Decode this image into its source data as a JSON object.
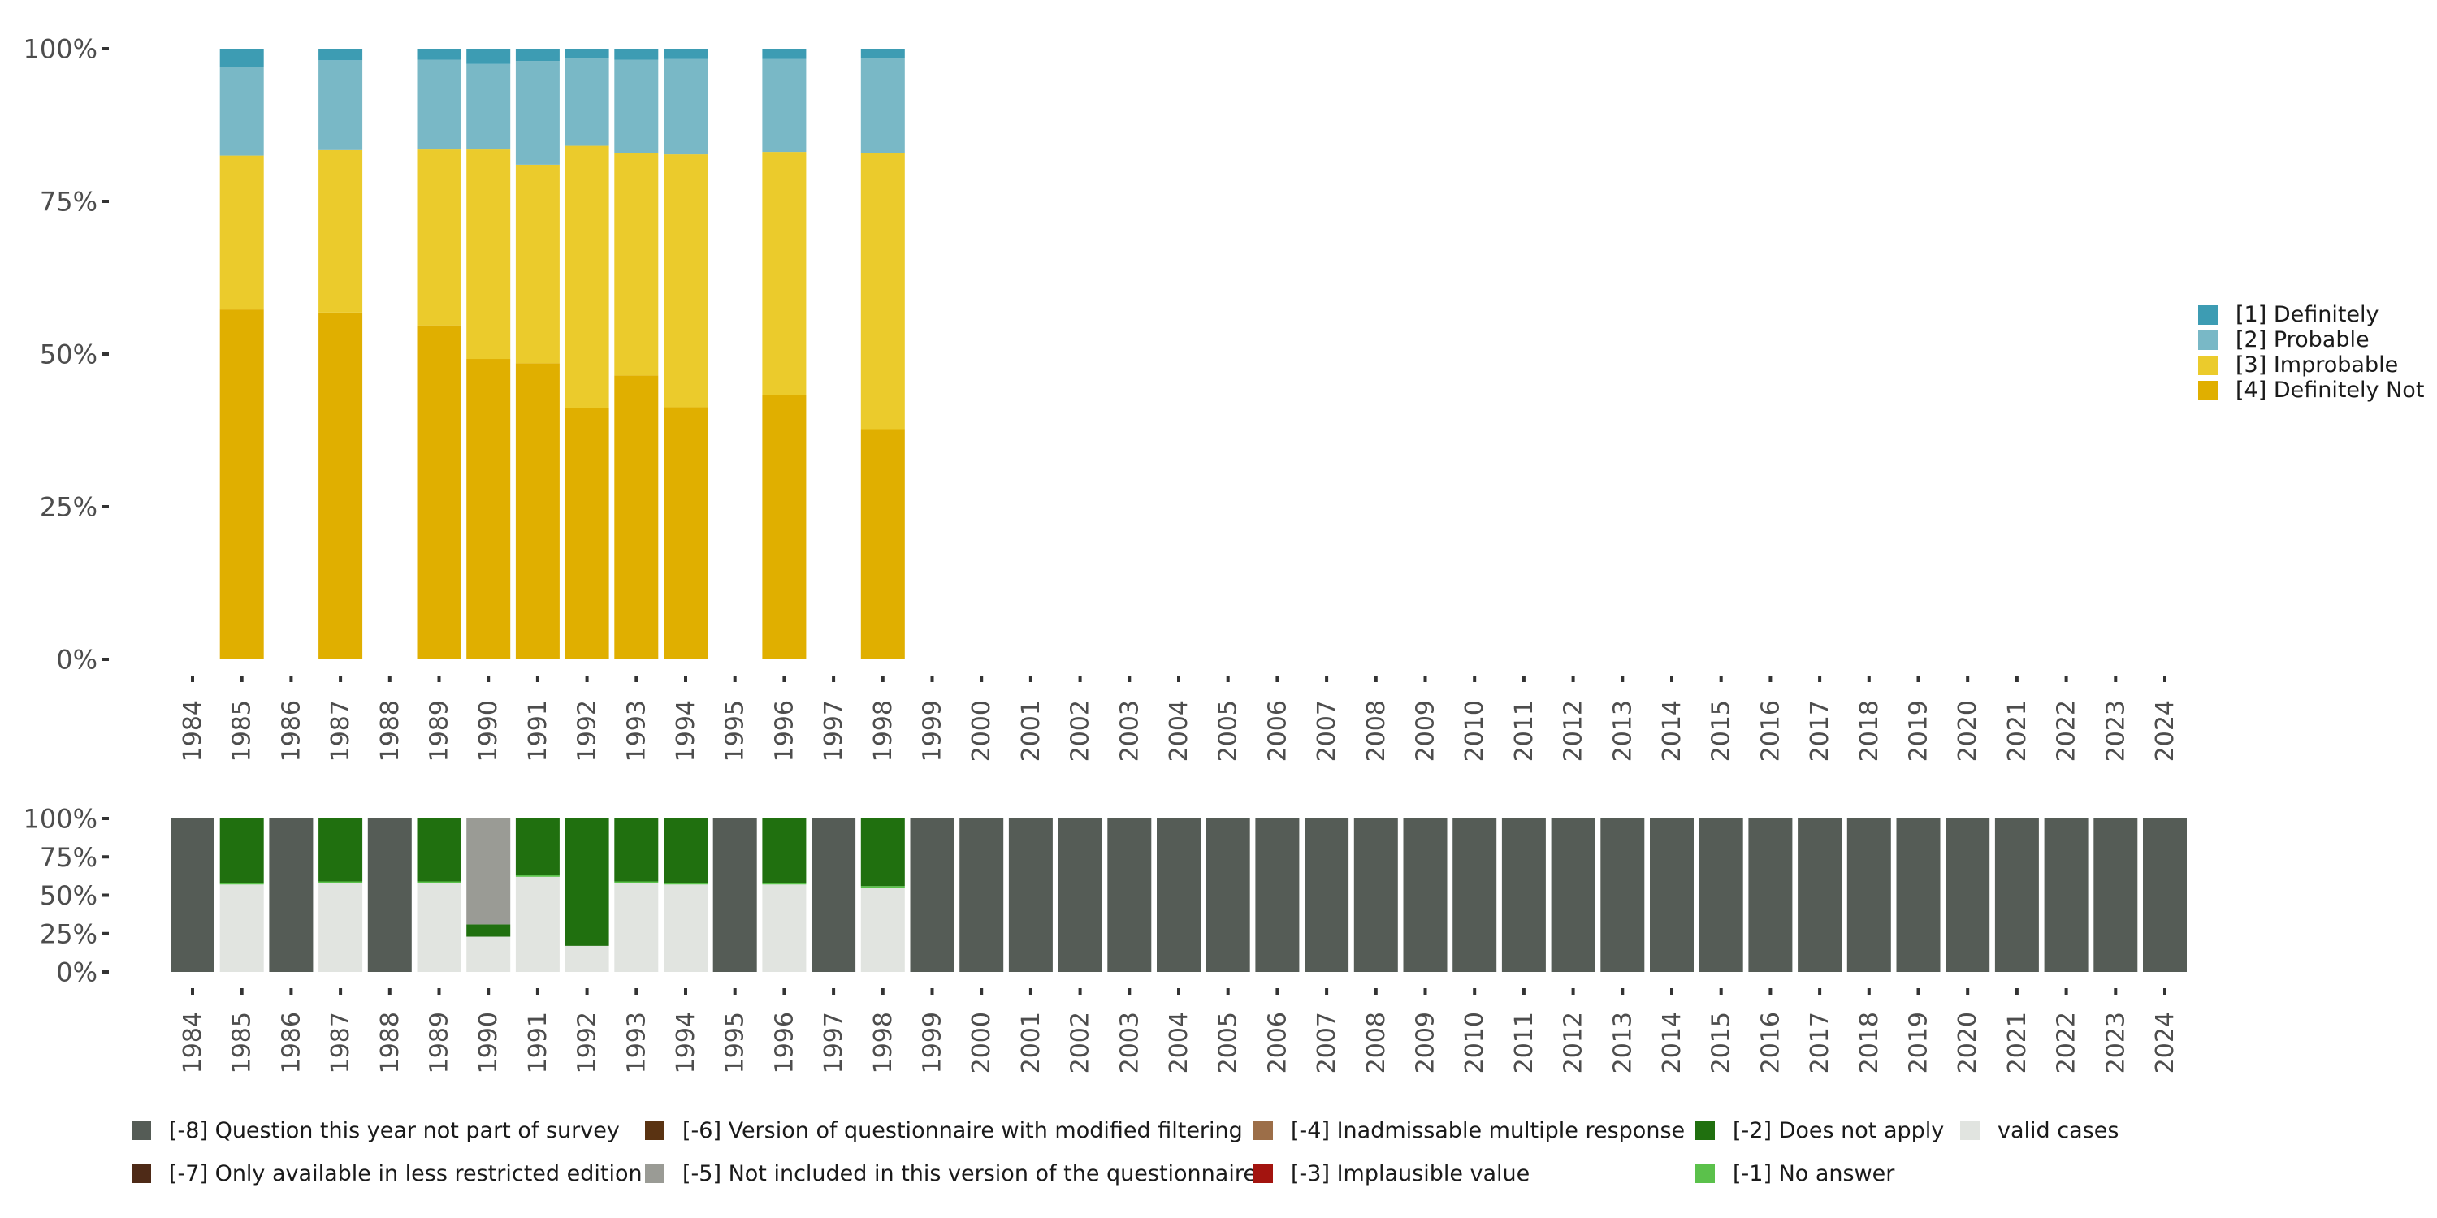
{
  "chart_data": [
    {
      "type": "bar",
      "stacked": true,
      "categories": [
        "1984",
        "1985",
        "1986",
        "1987",
        "1988",
        "1989",
        "1990",
        "1991",
        "1992",
        "1993",
        "1994",
        "1995",
        "1996",
        "1997",
        "1998",
        "1999",
        "2000",
        "2001",
        "2002",
        "2003",
        "2004",
        "2005",
        "2006",
        "2007",
        "2008",
        "2009",
        "2010",
        "2011",
        "2012",
        "2013",
        "2014",
        "2015",
        "2016",
        "2017",
        "2018",
        "2019",
        "2020",
        "2021",
        "2022",
        "2023",
        "2024"
      ],
      "ylim": [
        0,
        100
      ],
      "yticks": [
        "0%",
        "25%",
        "50%",
        "75%",
        "100%"
      ],
      "legend_position": "right",
      "series": [
        {
          "name": "[4] Definitely Not",
          "color": "#E0AF00",
          "values": [
            null,
            57.3,
            null,
            56.8,
            null,
            54.7,
            49.2,
            48.5,
            41.2,
            46.5,
            41.3,
            null,
            43.3,
            null,
            37.7,
            null,
            null,
            null,
            null,
            null,
            null,
            null,
            null,
            null,
            null,
            null,
            null,
            null,
            null,
            null,
            null,
            null,
            null,
            null,
            null,
            null,
            null,
            null,
            null,
            null,
            null
          ]
        },
        {
          "name": "[3] Improbable",
          "color": "#EBCB2C",
          "values": [
            null,
            25.2,
            null,
            26.6,
            null,
            28.8,
            34.3,
            32.5,
            42.9,
            36.4,
            41.4,
            null,
            39.8,
            null,
            45.2,
            null,
            null,
            null,
            null,
            null,
            null,
            null,
            null,
            null,
            null,
            null,
            null,
            null,
            null,
            null,
            null,
            null,
            null,
            null,
            null,
            null,
            null,
            null,
            null,
            null,
            null
          ]
        },
        {
          "name": "[2] Probable",
          "color": "#79B8C6",
          "values": [
            null,
            14.5,
            null,
            14.7,
            null,
            14.7,
            14.0,
            17.0,
            14.3,
            15.3,
            15.6,
            null,
            15.2,
            null,
            15.5,
            null,
            null,
            null,
            null,
            null,
            null,
            null,
            null,
            null,
            null,
            null,
            null,
            null,
            null,
            null,
            null,
            null,
            null,
            null,
            null,
            null,
            null,
            null,
            null,
            null,
            null
          ]
        },
        {
          "name": "[1] Definitely",
          "color": "#3D9CB3",
          "values": [
            null,
            3.0,
            null,
            1.9,
            null,
            1.8,
            2.5,
            2.0,
            1.6,
            1.8,
            1.7,
            null,
            1.7,
            null,
            1.6,
            null,
            null,
            null,
            null,
            null,
            null,
            null,
            null,
            null,
            null,
            null,
            null,
            null,
            null,
            null,
            null,
            null,
            null,
            null,
            null,
            null,
            null,
            null,
            null,
            null,
            null
          ]
        }
      ]
    },
    {
      "type": "bar",
      "stacked": true,
      "categories": [
        "1984",
        "1985",
        "1986",
        "1987",
        "1988",
        "1989",
        "1990",
        "1991",
        "1992",
        "1993",
        "1994",
        "1995",
        "1996",
        "1997",
        "1998",
        "1999",
        "2000",
        "2001",
        "2002",
        "2003",
        "2004",
        "2005",
        "2006",
        "2007",
        "2008",
        "2009",
        "2010",
        "2011",
        "2012",
        "2013",
        "2014",
        "2015",
        "2016",
        "2017",
        "2018",
        "2019",
        "2020",
        "2021",
        "2022",
        "2023",
        "2024"
      ],
      "ylim": [
        0,
        100
      ],
      "yticks": [
        "0%",
        "25%",
        "50%",
        "75%",
        "100%"
      ],
      "legend_position": "bottom",
      "series": [
        {
          "name": "valid cases",
          "color": "#E1E4E0",
          "values": [
            0,
            57,
            0,
            58,
            0,
            58,
            23,
            62,
            17,
            58,
            57,
            0,
            57,
            0,
            55,
            0,
            0,
            0,
            0,
            0,
            0,
            0,
            0,
            0,
            0,
            0,
            0,
            0,
            0,
            0,
            0,
            0,
            0,
            0,
            0,
            0,
            0,
            0,
            0,
            0,
            0
          ]
        },
        {
          "name": "[-1] No answer",
          "color": "#5BC14B",
          "values": [
            0,
            1,
            0,
            1,
            0,
            1,
            0,
            1,
            0,
            1,
            1,
            0,
            1,
            0,
            1,
            0,
            0,
            0,
            0,
            0,
            0,
            0,
            0,
            0,
            0,
            0,
            0,
            0,
            0,
            0,
            0,
            0,
            0,
            0,
            0,
            0,
            0,
            0,
            0,
            0,
            0
          ]
        },
        {
          "name": "[-2] Does not apply",
          "color": "#20700F",
          "values": [
            0,
            42,
            0,
            41,
            0,
            41,
            8,
            37,
            83,
            41,
            42,
            0,
            42,
            0,
            44,
            0,
            0,
            0,
            0,
            0,
            0,
            0,
            0,
            0,
            0,
            0,
            0,
            0,
            0,
            0,
            0,
            0,
            0,
            0,
            0,
            0,
            0,
            0,
            0,
            0,
            0
          ]
        },
        {
          "name": "[-3] Implausible value",
          "color": "#A3140F",
          "values": [
            0,
            0,
            0,
            0,
            0,
            0,
            0,
            0,
            0,
            0,
            0,
            0,
            0,
            0,
            0,
            0,
            0,
            0,
            0,
            0,
            0,
            0,
            0,
            0,
            0,
            0,
            0,
            0,
            0,
            0,
            0,
            0,
            0,
            0,
            0,
            0,
            0,
            0,
            0,
            0,
            0
          ]
        },
        {
          "name": "[-4] Inadmissable multiple response",
          "color": "#9C6E48",
          "values": [
            0,
            0,
            0,
            0,
            0,
            0,
            0,
            0,
            0,
            0,
            0,
            0,
            0,
            0,
            0,
            0,
            0,
            0,
            0,
            0,
            0,
            0,
            0,
            0,
            0,
            0,
            0,
            0,
            0,
            0,
            0,
            0,
            0,
            0,
            0,
            0,
            0,
            0,
            0,
            0,
            0
          ]
        },
        {
          "name": "[-5] Not included in this version of the questionnaire",
          "color": "#9A9B95",
          "values": [
            0,
            0,
            0,
            0,
            0,
            0,
            69,
            0,
            0,
            0,
            0,
            0,
            0,
            0,
            0,
            0,
            0,
            0,
            0,
            0,
            0,
            0,
            0,
            0,
            0,
            0,
            0,
            0,
            0,
            0,
            0,
            0,
            0,
            0,
            0,
            0,
            0,
            0,
            0,
            0,
            0
          ]
        },
        {
          "name": "[-6] Version of questionnaire with modified filtering",
          "color": "#5A3312",
          "values": [
            0,
            0,
            0,
            0,
            0,
            0,
            0,
            0,
            0,
            0,
            0,
            0,
            0,
            0,
            0,
            0,
            0,
            0,
            0,
            0,
            0,
            0,
            0,
            0,
            0,
            0,
            0,
            0,
            0,
            0,
            0,
            0,
            0,
            0,
            0,
            0,
            0,
            0,
            0,
            0,
            0
          ]
        },
        {
          "name": "[-7] Only available in less restricted edition",
          "color": "#4E2A17",
          "values": [
            0,
            0,
            0,
            0,
            0,
            0,
            0,
            0,
            0,
            0,
            0,
            0,
            0,
            0,
            0,
            0,
            0,
            0,
            0,
            0,
            0,
            0,
            0,
            0,
            0,
            0,
            0,
            0,
            0,
            0,
            0,
            0,
            0,
            0,
            0,
            0,
            0,
            0,
            0,
            0,
            0
          ]
        },
        {
          "name": "[-8] Question this year not part of survey",
          "color": "#555C56",
          "values": [
            100,
            0,
            100,
            0,
            100,
            0,
            0,
            0,
            0,
            0,
            0,
            100,
            0,
            100,
            0,
            100,
            100,
            100,
            100,
            100,
            100,
            100,
            100,
            100,
            100,
            100,
            100,
            100,
            100,
            100,
            100,
            100,
            100,
            100,
            100,
            100,
            100,
            100,
            100,
            100,
            100
          ]
        }
      ],
      "legend_order": [
        "[-8] Question this year not part of survey",
        "[-7] Only available in less restricted edition",
        "[-6] Version of questionnaire with modified filtering",
        "[-5] Not included in this version of the questionnaire",
        "[-4] Inadmissable multiple response",
        "[-3] Implausible value",
        "[-2] Does not apply",
        "[-1] No answer",
        "valid cases"
      ]
    }
  ]
}
